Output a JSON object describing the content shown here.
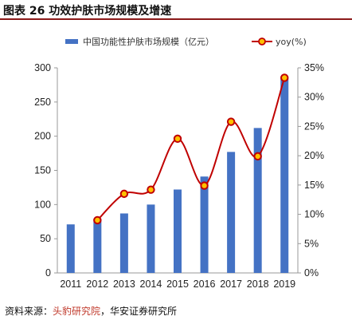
{
  "figure_title": "图表 26 功效护肤市场规模及增速",
  "source": {
    "prefix": "资料来源：",
    "part1": "头豹研究院",
    "sep": "，",
    "part2": "华安证券研究所"
  },
  "colors": {
    "bar": "#4472c4",
    "line": "#c00000",
    "marker_fill": "#ffc000",
    "title_rule": "#8b1a1a"
  },
  "chart_data": {
    "type": "bar",
    "categories": [
      "2011",
      "2012",
      "2013",
      "2014",
      "2015",
      "2016",
      "2017",
      "2018",
      "2019"
    ],
    "series": [
      {
        "name": "中国功能性护肤市场规模（亿元）",
        "type": "bar",
        "axis": "left",
        "values": [
          71,
          79,
          87,
          100,
          122,
          141,
          177,
          212,
          286
        ]
      },
      {
        "name": "yoy(%)",
        "type": "line",
        "axis": "right",
        "values": [
          null,
          9.0,
          13.5,
          14.2,
          22.9,
          14.9,
          25.8,
          19.9,
          33.3
        ]
      }
    ],
    "ylim_left": [
      0,
      300
    ],
    "ylim_right": [
      0,
      35
    ],
    "left_ticks": [
      "0",
      "50",
      "100",
      "150",
      "200",
      "250",
      "300"
    ],
    "right_ticks": [
      "0%",
      "5%",
      "10%",
      "15%",
      "20%",
      "25%",
      "30%",
      "35%"
    ],
    "legend_position": "top",
    "grid": false
  }
}
